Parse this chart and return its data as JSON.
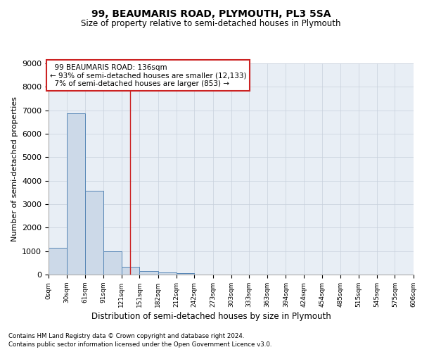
{
  "title": "99, BEAUMARIS ROAD, PLYMOUTH, PL3 5SA",
  "subtitle": "Size of property relative to semi-detached houses in Plymouth",
  "xlabel": "Distribution of semi-detached houses by size in Plymouth",
  "ylabel": "Number of semi-detached properties",
  "footer_line1": "Contains HM Land Registry data © Crown copyright and database right 2024.",
  "footer_line2": "Contains public sector information licensed under the Open Government Licence v3.0.",
  "property_size": 136,
  "property_label": "99 BEAUMARIS ROAD: 136sqm",
  "pct_smaller": 93,
  "num_smaller": 12133,
  "pct_larger": 7,
  "num_larger": 853,
  "bin_edges": [
    0,
    30,
    61,
    91,
    121,
    151,
    182,
    212,
    242,
    273,
    303,
    333,
    363,
    394,
    424,
    454,
    485,
    515,
    545,
    575,
    606
  ],
  "bin_labels": [
    "0sqm",
    "30sqm",
    "61sqm",
    "91sqm",
    "121sqm",
    "151sqm",
    "182sqm",
    "212sqm",
    "242sqm",
    "273sqm",
    "303sqm",
    "333sqm",
    "363sqm",
    "394sqm",
    "424sqm",
    "454sqm",
    "485sqm",
    "515sqm",
    "545sqm",
    "575sqm",
    "606sqm"
  ],
  "bar_values": [
    1130,
    6880,
    3560,
    1000,
    330,
    150,
    100,
    70,
    0,
    0,
    0,
    0,
    0,
    0,
    0,
    0,
    0,
    0,
    0,
    0
  ],
  "bar_color": "#ccd9e8",
  "bar_edge_color": "#5585b5",
  "marker_line_color": "#cc2222",
  "annotation_box_edgecolor": "#cc2222",
  "grid_color": "#c8d0dc",
  "bg_color": "#e8eef5",
  "ylim": [
    0,
    9000
  ],
  "yticks": [
    0,
    1000,
    2000,
    3000,
    4000,
    5000,
    6000,
    7000,
    8000,
    9000
  ]
}
